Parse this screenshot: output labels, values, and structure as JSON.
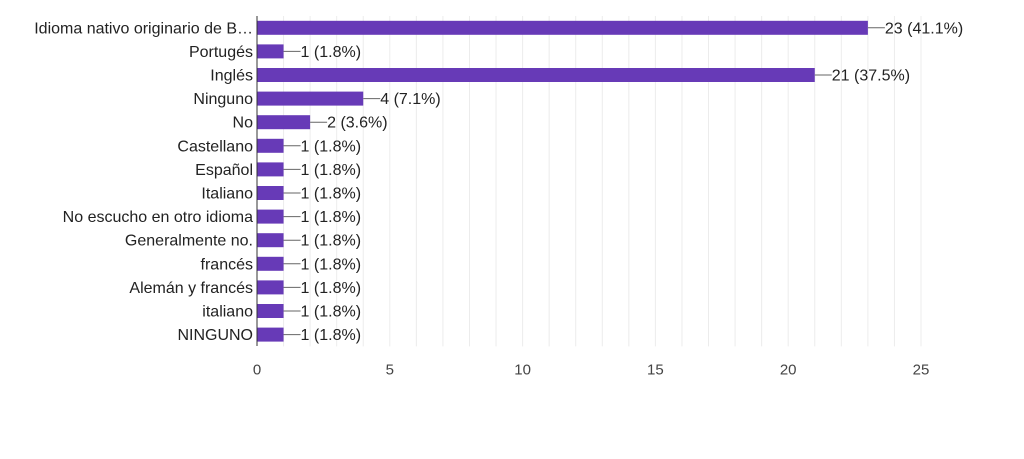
{
  "chart_data": {
    "type": "bar",
    "orientation": "horizontal",
    "title": "",
    "xlabel": "",
    "ylabel": "",
    "categories": [
      "Idioma nativo originario de B…",
      "Portugés",
      "Inglés",
      "Ninguno",
      "No",
      "Castellano",
      "Español",
      "Italiano",
      "No escucho en otro idioma",
      "Generalmente no.",
      "francés",
      "Alemán y francés",
      "italiano",
      "NINGUNO"
    ],
    "values": [
      23,
      1,
      21,
      4,
      2,
      1,
      1,
      1,
      1,
      1,
      1,
      1,
      1,
      1
    ],
    "data_labels": [
      "23 (41.1%)",
      "1 (1.8%)",
      "21 (37.5%)",
      "4 (7.1%)",
      "2 (3.6%)",
      "1 (1.8%)",
      "1 (1.8%)",
      "1 (1.8%)",
      "1 (1.8%)",
      "1 (1.8%)",
      "1 (1.8%)",
      "1 (1.8%)",
      "1 (1.8%)",
      "1 (1.8%)"
    ],
    "xlim": [
      0,
      25
    ],
    "xticks": [
      "0",
      "5",
      "10",
      "15",
      "20",
      "25"
    ],
    "xtick_values": [
      0,
      5,
      10,
      15,
      20,
      25
    ],
    "grid": true,
    "legend": "none",
    "bar_color": "#673ab7"
  }
}
